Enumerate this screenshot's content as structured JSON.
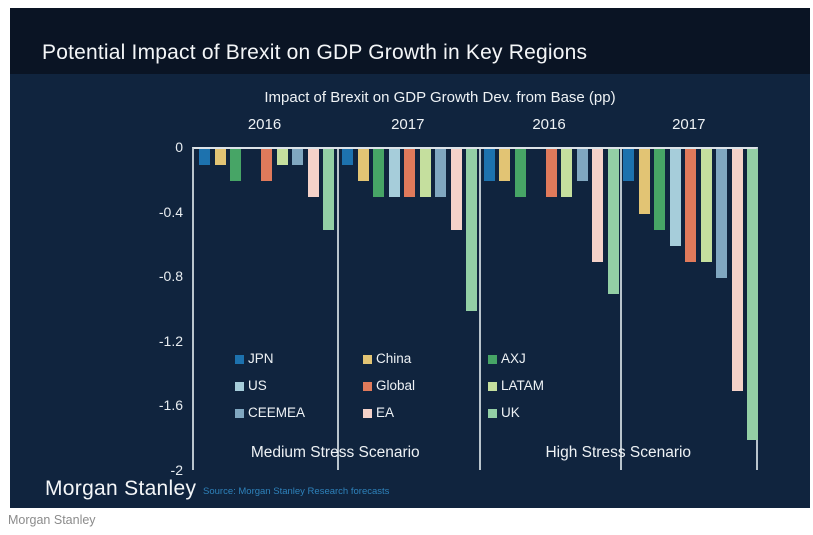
{
  "page": {
    "caption": "Morgan Stanley"
  },
  "card": {
    "title": "Potential Impact of Brexit on GDP Growth in Key Regions",
    "source": "Source: Morgan Stanley Research forecasts",
    "logo": "Morgan Stanley"
  },
  "colors": {
    "page_background": "#ffffff",
    "card_background": "#10243e",
    "title_band_background": "#0a1424",
    "axis_line": "#b9c4cc",
    "zero_line": "#dde3e8",
    "text_primary": "#eef2f5",
    "source_text": "#2e82bb",
    "caption_text": "#8b8b8b"
  },
  "chart_data": {
    "type": "bar",
    "title": "Impact of Brexit on GDP Growth Dev. from Base (pp)",
    "xlabel": "",
    "ylabel": "",
    "ylim": [
      -2,
      0
    ],
    "grid": false,
    "legend_position": "inside-lower-left",
    "yticks": [
      {
        "label": "0",
        "value": 0
      },
      {
        "label": "-0.4",
        "value": -0.4
      },
      {
        "label": "-0.8",
        "value": -0.8
      },
      {
        "label": "-1.2",
        "value": -1.2
      },
      {
        "label": "-1.6",
        "value": -1.6
      },
      {
        "label": "-2",
        "value": -2
      }
    ],
    "group_labels": [
      "2016",
      "2017",
      "2016",
      "2017"
    ],
    "scenario_labels": [
      "Medium Stress Scenario",
      "High Stress Scenario"
    ],
    "series": [
      {
        "name": "JPN",
        "color": "#1d72ae",
        "values": [
          -0.1,
          -0.1,
          -0.2,
          -0.2
        ]
      },
      {
        "name": "China",
        "color": "#e2c474",
        "values": [
          -0.1,
          -0.2,
          -0.2,
          -0.4
        ]
      },
      {
        "name": "AXJ",
        "color": "#47a566",
        "values": [
          -0.2,
          -0.3,
          -0.3,
          -0.5
        ]
      },
      {
        "name": "US",
        "color": "#a6cdda",
        "values": [
          0.0,
          -0.3,
          0.0,
          -0.6
        ]
      },
      {
        "name": "Global",
        "color": "#e07a5b",
        "values": [
          -0.2,
          -0.3,
          -0.3,
          -0.7
        ]
      },
      {
        "name": "LATAM",
        "color": "#c5df9e",
        "values": [
          -0.1,
          -0.3,
          -0.3,
          -0.7
        ]
      },
      {
        "name": "CEEMEA",
        "color": "#80a7c0",
        "values": [
          -0.1,
          -0.3,
          -0.2,
          -0.8
        ]
      },
      {
        "name": "EA",
        "color": "#f4d2c9",
        "values": [
          -0.3,
          -0.5,
          -0.7,
          -1.5
        ]
      },
      {
        "name": "UK",
        "color": "#93cfa5",
        "values": [
          -0.5,
          -1.0,
          -0.9,
          -1.8
        ]
      }
    ],
    "legend_columns": [
      [
        "JPN",
        "US",
        "CEEMEA"
      ],
      [
        "China",
        "Global",
        "EA"
      ],
      [
        "AXJ",
        "LATAM",
        "UK"
      ]
    ]
  }
}
